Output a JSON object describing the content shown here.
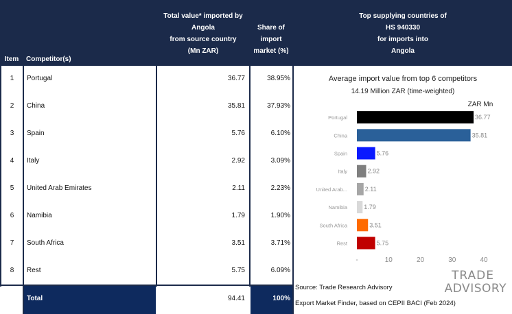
{
  "headers": {
    "item": "Item",
    "competitor": "Competitor(s)",
    "value_lines": [
      "Total value* imported by",
      "Angola",
      "from source country",
      "(Mn ZAR)"
    ],
    "share_lines": [
      "Share of",
      "import",
      "market (%)"
    ],
    "top_lines": [
      "Top supplying countries of",
      "HS 940330",
      "for imports into",
      "Angola"
    ]
  },
  "rows": [
    {
      "item": "1",
      "name": "Portugal",
      "value": "36.77",
      "share": "38.95%"
    },
    {
      "item": "2",
      "name": "China",
      "value": "35.81",
      "share": "37.93%"
    },
    {
      "item": "3",
      "name": "Spain",
      "value": "5.76",
      "share": "6.10%"
    },
    {
      "item": "4",
      "name": "Italy",
      "value": "2.92",
      "share": "3.09%"
    },
    {
      "item": "5",
      "name": "United Arab Emirates",
      "value": "2.11",
      "share": "2.23%"
    },
    {
      "item": "6",
      "name": "Namibia",
      "value": "1.79",
      "share": "1.90%"
    },
    {
      "item": "7",
      "name": "South Africa",
      "value": "3.51",
      "share": "3.71%"
    },
    {
      "item": "8",
      "name": "Rest",
      "value": "5.75",
      "share": "6.09%"
    }
  ],
  "total": {
    "label": "Total",
    "value": "94.41",
    "share": "100%"
  },
  "source": {
    "line1": "Source: Trade Research Advisory",
    "line2": "Export Market Finder, based on CEPII BACI (Feb 2024)"
  },
  "logo": {
    "line1": "TRADE",
    "line2": "ADVISORY"
  },
  "chart_data": {
    "type": "bar",
    "orientation": "horizontal",
    "title": "Average import value from top 6 competitors",
    "subtitle": "14.19 Million ZAR (time-weighted)",
    "unit_label": "ZAR Mn",
    "categories": [
      "Portugal",
      "China",
      "Spain",
      "Italy",
      "United Arab...",
      "Namibia",
      "South Africa",
      "Rest"
    ],
    "values": [
      36.77,
      35.81,
      5.76,
      2.92,
      2.11,
      1.79,
      3.51,
      5.75
    ],
    "value_labels": [
      "36.77",
      "35.81",
      "5.76",
      "2.92",
      "2.11",
      "1.79",
      "3.51",
      "5.75"
    ],
    "colors": [
      "#000000",
      "#2a6099",
      "#0a1aff",
      "#7f7f7f",
      "#a6a6a6",
      "#d9d9d9",
      "#ff6a00",
      "#c00000"
    ],
    "xticks": [
      "-",
      "10",
      "20",
      "30",
      "40"
    ],
    "xlim": [
      0,
      40
    ],
    "grid": false
  },
  "colors": {
    "navy": "#1b2a4a",
    "total_row": "#0e2a5e"
  }
}
